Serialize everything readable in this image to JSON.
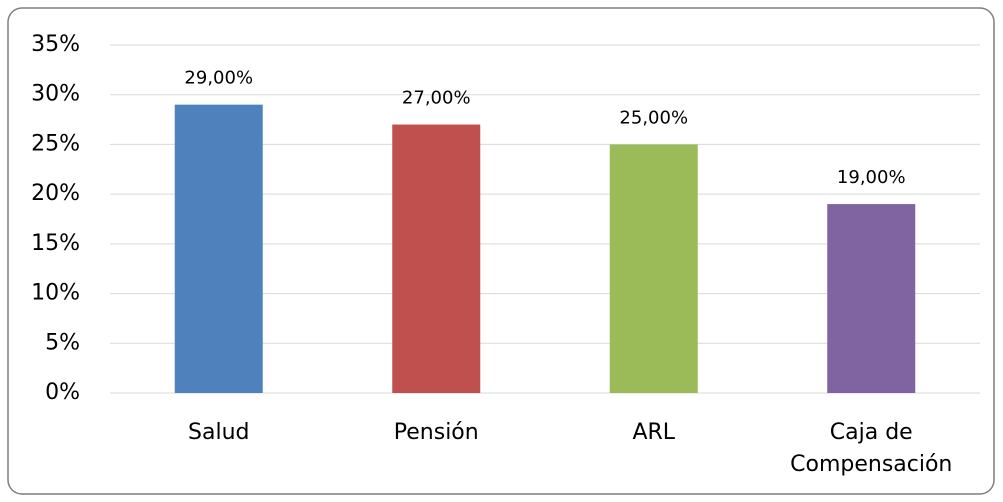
{
  "chart_data": {
    "type": "bar",
    "categories": [
      "Salud",
      "Pensión",
      "ARL",
      "Caja de Compensación"
    ],
    "values": [
      29,
      27,
      25,
      19
    ],
    "value_labels": [
      "29,00%",
      "27,00%",
      "25,00%",
      "19,00%"
    ],
    "colors": [
      "#4f81bd",
      "#c0504d",
      "#9bbb59",
      "#8064a2"
    ],
    "ylim": [
      0,
      35
    ],
    "yticks": [
      {
        "value": 0,
        "label": "0%"
      },
      {
        "value": 5,
        "label": "5%"
      },
      {
        "value": 10,
        "label": "10%"
      },
      {
        "value": 15,
        "label": "15%"
      },
      {
        "value": 20,
        "label": "20%"
      },
      {
        "value": 25,
        "label": "25%"
      },
      {
        "value": 30,
        "label": "30%"
      },
      {
        "value": 35,
        "label": "35%"
      }
    ],
    "grid": true
  }
}
